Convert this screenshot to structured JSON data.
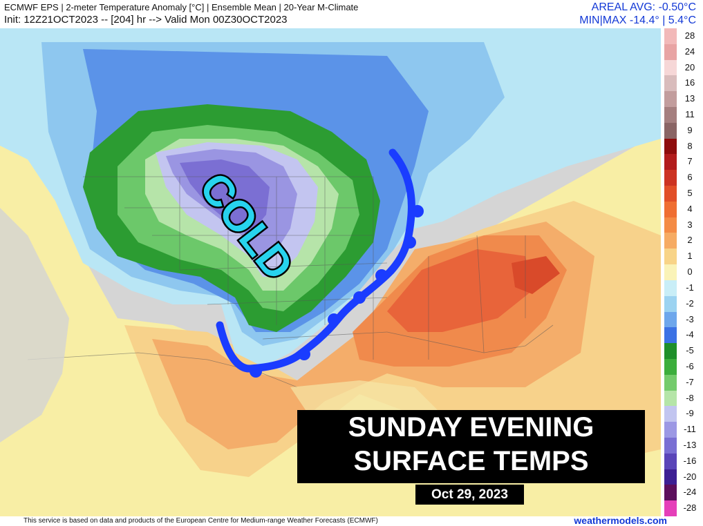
{
  "header": {
    "line1": "ECMWF EPS | 2-meter Temperature Anomaly [°C] | Ensemble Mean | 20-Year M-Climate",
    "line2": "Init: 12Z21OCT2023 -- [204] hr --> Valid Mon 00Z30OCT2023",
    "areal_avg": "AREAL AVG: -0.50°C",
    "min_max": "MIN|MAX -14.4° | 5.4°C"
  },
  "map": {
    "cold_label": "COLD",
    "front_color": "#1a3cff",
    "cold_label_color": "#27d3ee"
  },
  "legend": {
    "labels": [
      "28",
      "24",
      "20",
      "16",
      "13",
      "11",
      "9",
      "8",
      "7",
      "6",
      "5",
      "4",
      "3",
      "2",
      "1",
      "0",
      "-1",
      "-2",
      "-3",
      "-4",
      "-5",
      "-6",
      "-7",
      "-8",
      "-9",
      "-11",
      "-13",
      "-16",
      "-20",
      "-24",
      "-28"
    ],
    "colors": [
      "#f2b9b9",
      "#e8a4a4",
      "#f6d7d7",
      "#d9bcbc",
      "#c29d9d",
      "#a57f7f",
      "#8a6565",
      "#8e0d0d",
      "#b21c1c",
      "#cc3322",
      "#e14f28",
      "#ef6e32",
      "#f48b45",
      "#f6ab63",
      "#f8d488",
      "#faf3b8",
      "#c9eef7",
      "#9cd3f1",
      "#6ea7ec",
      "#3c72e4",
      "#1f8f2a",
      "#3cae3c",
      "#74cb6c",
      "#b5e5a8",
      "#c2c5f0",
      "#9c98e4",
      "#7a6fd3",
      "#5a45b8",
      "#3d1f93",
      "#5c0f5c",
      "#e53fb9"
    ]
  },
  "caption": {
    "line1": "SUNDAY EVENING",
    "line2": "SURFACE TEMPS",
    "date": "Oct 29, 2023"
  },
  "footer": {
    "disclaimer": "This service is based on data and products of the European Centre for Medium-range Weather Forecasts (ECMWF)",
    "brand": "weathermodels.com"
  }
}
